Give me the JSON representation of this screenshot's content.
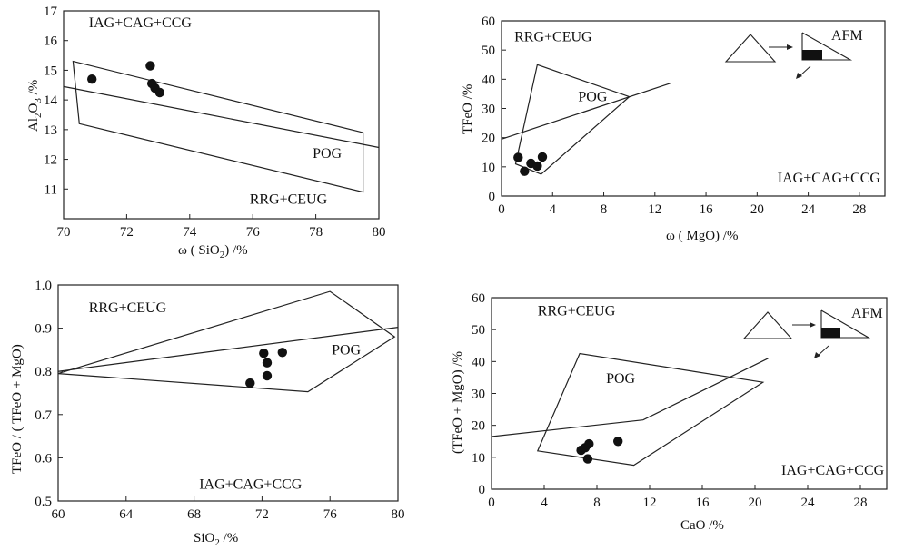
{
  "chart_data": [
    {
      "type": "scatter",
      "xlabel": "ω ( SiO2 ) /%",
      "ylabel": "Al2O3 /%",
      "xlim": [
        70,
        80
      ],
      "ylim": [
        10,
        17
      ],
      "xticks": [
        70,
        72,
        74,
        76,
        78,
        80
      ],
      "yticks": [
        11,
        12,
        13,
        14,
        15,
        16,
        17
      ],
      "points": [
        [
          70.9,
          14.7
        ],
        [
          72.75,
          15.15
        ],
        [
          72.8,
          14.55
        ],
        [
          72.9,
          14.4
        ],
        [
          73.05,
          14.25
        ]
      ],
      "polygon": [
        [
          70.3,
          15.3
        ],
        [
          79.5,
          12.9
        ],
        [
          79.5,
          10.9
        ],
        [
          70.5,
          13.2
        ]
      ],
      "line": [
        [
          70,
          14.45
        ],
        [
          80,
          12.4
        ]
      ],
      "regions": [
        {
          "label": "IAG+CAG+CCG",
          "x": 70.8,
          "y": 16.45
        },
        {
          "label": "POG",
          "x": 77.9,
          "y": 12.05
        },
        {
          "label": "RRG+CEUG",
          "x": 75.9,
          "y": 10.5
        }
      ]
    },
    {
      "type": "scatter",
      "xlabel": "ω ( MgO) /%",
      "ylabel": "TFeO /%",
      "xlim": [
        0,
        30
      ],
      "ylim": [
        0,
        60
      ],
      "xticks": [
        0,
        4,
        8,
        12,
        16,
        20,
        24,
        28
      ],
      "yticks": [
        0,
        10,
        20,
        30,
        40,
        50,
        60
      ],
      "points": [
        [
          1.3,
          13.2
        ],
        [
          1.8,
          8.5
        ],
        [
          2.3,
          11.2
        ],
        [
          2.8,
          10.3
        ],
        [
          3.2,
          13.4
        ]
      ],
      "polygon": [
        [
          1.1,
          11.0
        ],
        [
          2.8,
          45.0
        ],
        [
          10.0,
          34.0
        ],
        [
          3.1,
          7.5
        ]
      ],
      "line": [
        [
          0,
          19.5
        ],
        [
          13.2,
          38.6
        ]
      ],
      "regions": [
        {
          "label": "RRG+CEUG",
          "x": 1.0,
          "y": 53.0
        },
        {
          "label": "POG",
          "x": 6.0,
          "y": 32.5
        },
        {
          "label": "IAG+CAG+CCG",
          "x": 21.6,
          "y": 4.7
        }
      ],
      "inset_label": "AFM"
    },
    {
      "type": "scatter",
      "xlabel": "SiO2 /%",
      "ylabel": "TFeO / ( TFeO + MgO)",
      "xlim": [
        60,
        80
      ],
      "ylim": [
        0.5,
        1.0
      ],
      "xticks": [
        60,
        64,
        68,
        72,
        76,
        80
      ],
      "yticks": [
        0.5,
        0.6,
        0.7,
        0.8,
        0.9,
        1.0
      ],
      "points": [
        [
          71.3,
          0.773
        ],
        [
          72.1,
          0.842
        ],
        [
          72.3,
          0.82
        ],
        [
          72.3,
          0.79
        ],
        [
          73.2,
          0.844
        ]
      ],
      "polygon": [
        [
          60.0,
          0.795
        ],
        [
          76.0,
          0.985
        ],
        [
          79.8,
          0.88
        ],
        [
          74.7,
          0.753
        ]
      ],
      "line": [
        [
          60,
          0.8
        ],
        [
          80,
          0.902
        ]
      ],
      "regions": [
        {
          "label": "RRG+CEUG",
          "x": 61.8,
          "y": 0.937
        },
        {
          "label": "POG",
          "x": 76.1,
          "y": 0.839
        },
        {
          "label": "IAG+CAG+CCG",
          "x": 68.3,
          "y": 0.528
        }
      ]
    },
    {
      "type": "scatter",
      "xlabel": "CaO /%",
      "ylabel": "(TFeO + MgO) /%",
      "xlim": [
        0,
        30
      ],
      "ylim": [
        0,
        60
      ],
      "xticks": [
        0,
        4,
        8,
        12,
        16,
        20,
        24,
        28
      ],
      "yticks": [
        0,
        10,
        20,
        30,
        40,
        50,
        60
      ],
      "points": [
        [
          6.8,
          12.2
        ],
        [
          7.1,
          13.0
        ],
        [
          7.4,
          14.2
        ],
        [
          7.3,
          9.5
        ],
        [
          9.6,
          15.0
        ]
      ],
      "polygon": [
        [
          3.5,
          12.0
        ],
        [
          6.7,
          42.5
        ],
        [
          20.6,
          33.5
        ],
        [
          10.8,
          7.5
        ]
      ],
      "line": [
        [
          0,
          16.5
        ],
        [
          11.5,
          21.7
        ],
        [
          21.0,
          41.0
        ]
      ],
      "regions": [
        {
          "label": "RRG+CEUG",
          "x": 3.5,
          "y": 54.5
        },
        {
          "label": "POG",
          "x": 8.7,
          "y": 33.2
        },
        {
          "label": "IAG+CAG+CCG",
          "x": 22.0,
          "y": 4.6
        }
      ],
      "inset_label": "AFM"
    }
  ]
}
